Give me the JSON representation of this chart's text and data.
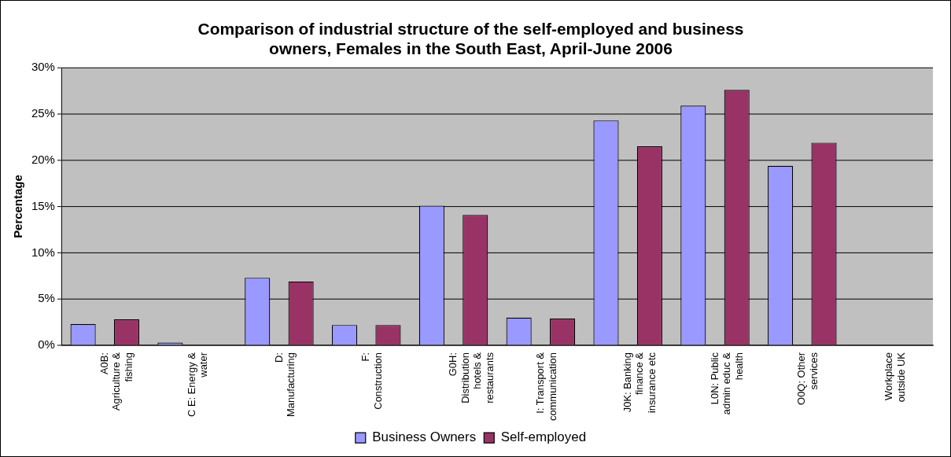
{
  "chart_data": {
    "type": "bar",
    "title": "Comparison of industrial structure of the self-employed and business owners, Females in the South East, April-June 2006",
    "ylabel": "Percentage",
    "categories": [
      "A0B: Agriculture & fishing",
      "C E: Energy & water",
      "D: Manufacturing",
      "F: Construction",
      "G0H: Distribution hotels & restaurants",
      "I: Transport & communication",
      "J0K: Banking finance & insurance etc",
      "L0N: Public admin educ & health",
      "O0Q: Other services",
      "Workplace outside UK"
    ],
    "series": [
      {
        "name": "Business Owners",
        "color": "#9999ff",
        "values": [
          2.3,
          0.3,
          7.3,
          2.2,
          15.1,
          3.0,
          24.3,
          25.9,
          19.4,
          0
        ]
      },
      {
        "name": "Self-employed",
        "color": "#993366",
        "values": [
          2.8,
          0,
          6.9,
          2.2,
          14.1,
          2.9,
          21.5,
          27.6,
          21.9,
          0
        ]
      }
    ],
    "ylim": [
      0,
      30
    ],
    "yticks": [
      {
        "value": 0,
        "label": "0%"
      },
      {
        "value": 5,
        "label": "5%"
      },
      {
        "value": 10,
        "label": "10%"
      },
      {
        "value": 15,
        "label": "15%"
      },
      {
        "value": 20,
        "label": "20%"
      },
      {
        "value": 25,
        "label": "25%"
      },
      {
        "value": 30,
        "label": "30%"
      }
    ],
    "grid": "y",
    "legend": "bottom"
  }
}
